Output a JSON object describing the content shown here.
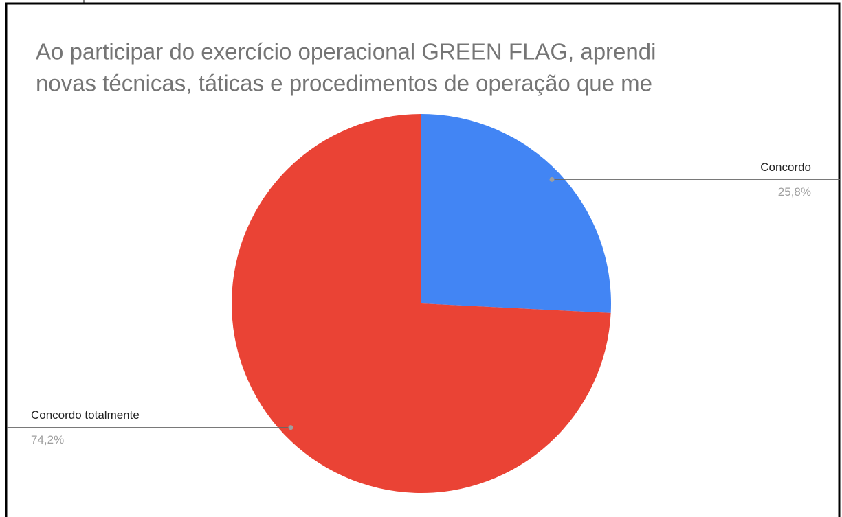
{
  "chart_data": {
    "type": "pie",
    "title": [
      "Ao participar do exercício operacional GREEN FLAG, aprendi",
      "novas técnicas, táticas e procedimentos de operação que me"
    ],
    "categories": [
      "Concordo",
      "Concordo totalmente"
    ],
    "values": [
      25.8,
      74.2
    ],
    "value_labels": [
      "25,8%",
      "74,2%"
    ],
    "colors": [
      "#4285f4",
      "#ea4335"
    ]
  }
}
